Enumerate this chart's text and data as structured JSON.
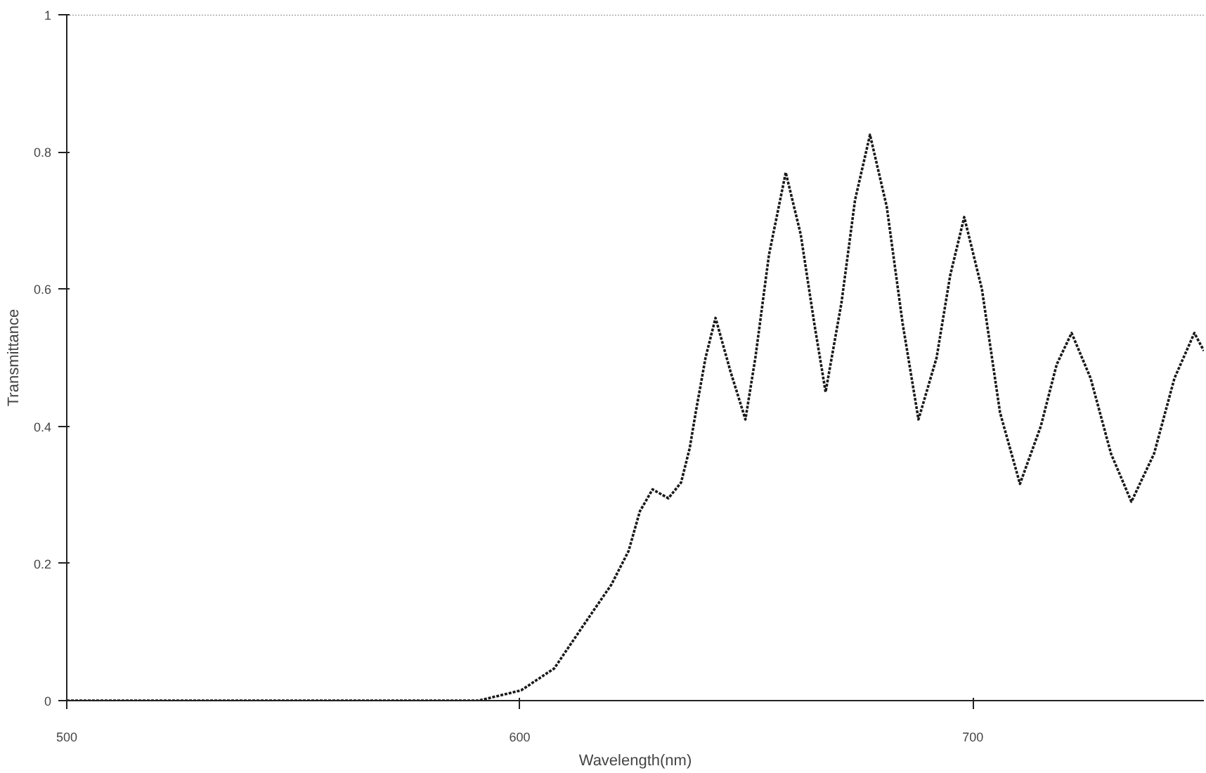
{
  "chart_data": {
    "type": "line",
    "xlabel": "Wavelength(nm)",
    "ylabel": "Transmittance",
    "xlim": [
      500,
      751
    ],
    "xticks": [
      500,
      600,
      700
    ],
    "ylim": [
      0,
      1
    ],
    "yticks": [
      0,
      0.2,
      0.4,
      0.6,
      0.8,
      1
    ],
    "grid": false,
    "marker": "none",
    "line_style": "dotted",
    "series": [
      {
        "color": "#1a1a1a",
        "x": [
          500,
          540,
          580,
          590.9,
          600.3,
          607.6,
          615.1,
          620.2,
          624,
          626.5,
          629.3,
          632.8,
          635.6,
          637.5,
          638.8,
          641,
          643.2,
          646.5,
          649.8,
          652,
          655,
          658.7,
          662,
          665,
          667.5,
          671,
          674,
          677.3,
          681,
          684.5,
          688,
          692,
          695,
          698.1,
          702,
          706,
          710.4,
          715,
          718.5,
          721.8,
          726,
          730.5,
          735,
          740,
          744.5,
          748.9,
          751
        ],
        "values": [
          0,
          0,
          0,
          0,
          0.015,
          0.047,
          0.12,
          0.169,
          0.218,
          0.276,
          0.308,
          0.295,
          0.318,
          0.368,
          0.419,
          0.5,
          0.558,
          0.48,
          0.41,
          0.5,
          0.65,
          0.77,
          0.68,
          0.55,
          0.45,
          0.58,
          0.73,
          0.825,
          0.72,
          0.55,
          0.41,
          0.5,
          0.62,
          0.705,
          0.6,
          0.42,
          0.316,
          0.4,
          0.49,
          0.536,
          0.47,
          0.36,
          0.29,
          0.36,
          0.47,
          0.536,
          0.51
        ]
      }
    ]
  }
}
